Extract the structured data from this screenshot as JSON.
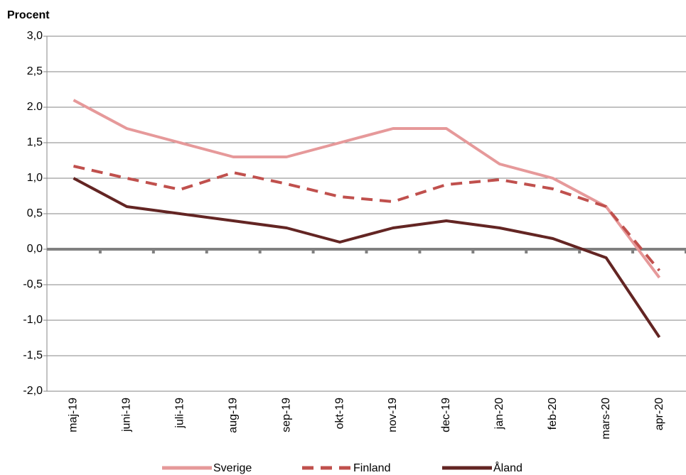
{
  "chart_data": {
    "type": "line",
    "y_label": "Procent",
    "categories": [
      "maj-19",
      "juni-19",
      "juli-19",
      "aug-19",
      "sep-19",
      "okt-19",
      "nov-19",
      "dec-19",
      "jan-20",
      "feb-20",
      "mars-20",
      "apr-20"
    ],
    "series": [
      {
        "name": "Sverige",
        "color": "#e6999a",
        "dashed": false,
        "values": [
          2.1,
          1.7,
          1.5,
          1.3,
          1.3,
          1.5,
          1.7,
          1.7,
          1.2,
          1.0,
          0.6,
          -0.4
        ]
      },
      {
        "name": "Finland",
        "color": "#c0504d",
        "dashed": true,
        "values": [
          1.17,
          1.0,
          0.84,
          1.08,
          0.92,
          0.74,
          0.67,
          0.91,
          0.98,
          0.85,
          0.6,
          -0.3
        ]
      },
      {
        "name": "Åland",
        "color": "#632523",
        "dashed": false,
        "values": [
          1.0,
          0.6,
          0.5,
          0.4,
          0.3,
          0.1,
          0.3,
          0.4,
          0.3,
          0.15,
          -0.12,
          -1.24
        ]
      }
    ],
    "ylim": [
      -2,
      3
    ],
    "yticks": [
      {
        "value": -2,
        "label": "-2,0"
      },
      {
        "value": -1.5,
        "label": "-1,5"
      },
      {
        "value": -1,
        "label": "-1,0"
      },
      {
        "value": -0.5,
        "label": "-0,5"
      },
      {
        "value": 0,
        "label": "0,0"
      },
      {
        "value": 0.5,
        "label": "0,5"
      },
      {
        "value": 1,
        "label": "1,0"
      },
      {
        "value": 1.5,
        "label": "1,5"
      },
      {
        "value": 2,
        "label": "2.0"
      },
      {
        "value": 2.5,
        "label": "2,5"
      },
      {
        "value": 3,
        "label": "3,0"
      }
    ],
    "grid": true
  }
}
